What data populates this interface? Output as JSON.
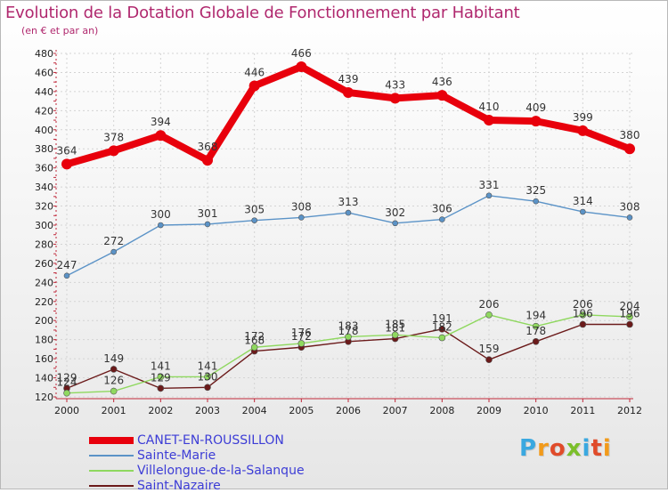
{
  "header": {
    "title": "Evolution de la Dotation Globale de Fonctionnement par Habitant",
    "subtitle": "(en € et par an)"
  },
  "brand": {
    "text": "Proxiti",
    "letters": [
      "P",
      "r",
      "o",
      "x",
      "i",
      "t",
      "i"
    ],
    "colors": [
      "#3aa8e0",
      "#f29a1a",
      "#e04b2a",
      "#7bbf2a",
      "#3aa8e0",
      "#e04b2a",
      "#f29a1a"
    ]
  },
  "chart_data": {
    "type": "line",
    "title": "Evolution de la Dotation Globale de Fonctionnement par Habitant",
    "subtitle": "(en € et par an)",
    "xlabel": "",
    "ylabel": "",
    "x": [
      2000,
      2001,
      2002,
      2003,
      2004,
      2005,
      2006,
      2007,
      2008,
      2009,
      2010,
      2011,
      2012
    ],
    "x_ticks": [
      "2000",
      "2001",
      "2002",
      "2003",
      "2004",
      "2005",
      "2006",
      "2007",
      "2008",
      "2009",
      "2010",
      "2011",
      "2012"
    ],
    "ylim": [
      120,
      480
    ],
    "y_ticks": [
      120,
      140,
      160,
      180,
      200,
      220,
      240,
      260,
      280,
      300,
      320,
      340,
      360,
      380,
      400,
      420,
      440,
      460,
      480
    ],
    "grid": true,
    "legend_position": "bottom-left",
    "series": [
      {
        "name": "CANET-EN-ROUSSILLON",
        "color": "#e8000c",
        "values": [
          364,
          378,
          394,
          368,
          446,
          466,
          439,
          433,
          436,
          410,
          409,
          399,
          380
        ],
        "labels": [
          "364",
          "378",
          "394",
          "368",
          "446",
          "466",
          "439",
          "433",
          "436",
          "410",
          "409",
          "399",
          "380"
        ]
      },
      {
        "name": "Sainte-Marie",
        "color": "#5b93c7",
        "values": [
          247,
          272,
          300,
          301,
          305,
          308,
          313,
          302,
          306,
          331,
          325,
          314,
          308
        ],
        "labels": [
          "247",
          "272",
          "300",
          "301",
          "305",
          "308",
          "313",
          "302",
          "306",
          "331",
          "325",
          "314",
          "308"
        ]
      },
      {
        "name": "Villelongue-de-la-Salanque",
        "color": "#8fd85f",
        "values": [
          124,
          126,
          141,
          141,
          172,
          176,
          183,
          185,
          182,
          206,
          194,
          206,
          204
        ],
        "labels": [
          "124",
          "126",
          "141",
          "141",
          "172",
          "176",
          "183",
          "185",
          "182",
          "206",
          "194",
          "206",
          "204"
        ]
      },
      {
        "name": "Saint-Nazaire",
        "color": "#6b1a1a",
        "values": [
          129,
          149,
          129,
          130,
          168,
          172,
          178,
          181,
          191,
          159,
          178,
          196,
          196
        ],
        "labels": [
          "129",
          "149",
          "129",
          "130",
          "168",
          "172",
          "178",
          "181",
          "191",
          "159",
          "178",
          "196",
          "196"
        ]
      }
    ]
  }
}
